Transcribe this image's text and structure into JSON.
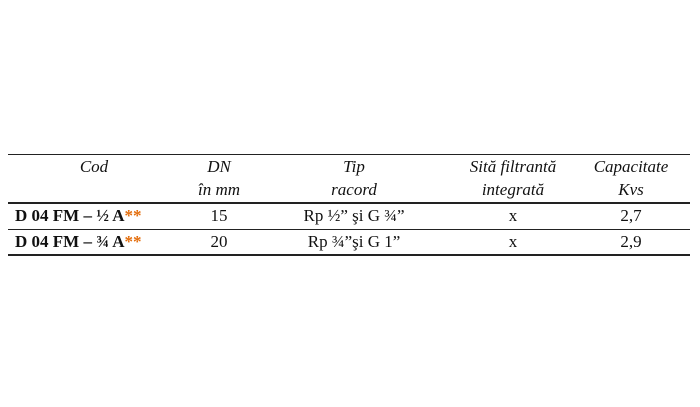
{
  "table": {
    "headers": [
      [
        "Cod"
      ],
      [
        "DN",
        "în mm"
      ],
      [
        "Tip",
        "racord"
      ],
      [
        "Sită filtrantă",
        "integrată"
      ],
      [
        "Capacitate",
        "Kvs"
      ]
    ],
    "rows": [
      {
        "code": "D 04 FM – ½ A",
        "mark": "**",
        "dn": "15",
        "racord": "Rp ½” şi G ¾”",
        "filter": "x",
        "kvs": "2,7"
      },
      {
        "code": "D 04 FM – ¾ A",
        "mark": "**",
        "dn": "20",
        "racord": "Rp ¾”şi G 1”",
        "filter": "x",
        "kvs": "2,9"
      }
    ]
  }
}
